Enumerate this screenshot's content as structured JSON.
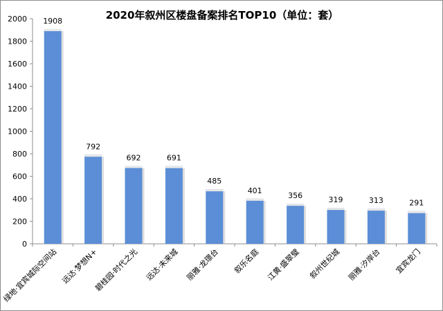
{
  "chart_data": {
    "type": "bar",
    "title": "2020年叙州区楼盘备案排名TOP10（单位：套）",
    "xlabel": "",
    "ylabel": "",
    "categories": [
      "绿地·宜宾城际空间站",
      "远达·梦想N+",
      "碧桂园·时代之光",
      "远达·未来城",
      "丽雅·龙璟台",
      "叙乐名庭",
      "江黄·盛翠璧",
      "叙州世纪城",
      "丽雅·汐岸台",
      "宜宾龙门"
    ],
    "values": [
      1908,
      792,
      692,
      691,
      485,
      401,
      356,
      319,
      313,
      291
    ],
    "ylim": [
      0,
      2000
    ],
    "yticks": [
      0,
      200,
      400,
      600,
      800,
      1000,
      1200,
      1400,
      1600,
      1800,
      2000
    ],
    "grid": false,
    "legend": "none",
    "bar_color": "#5b8ed6",
    "bar_top_color": "#e8e8e8",
    "axis_color": "#8c8c8c"
  }
}
